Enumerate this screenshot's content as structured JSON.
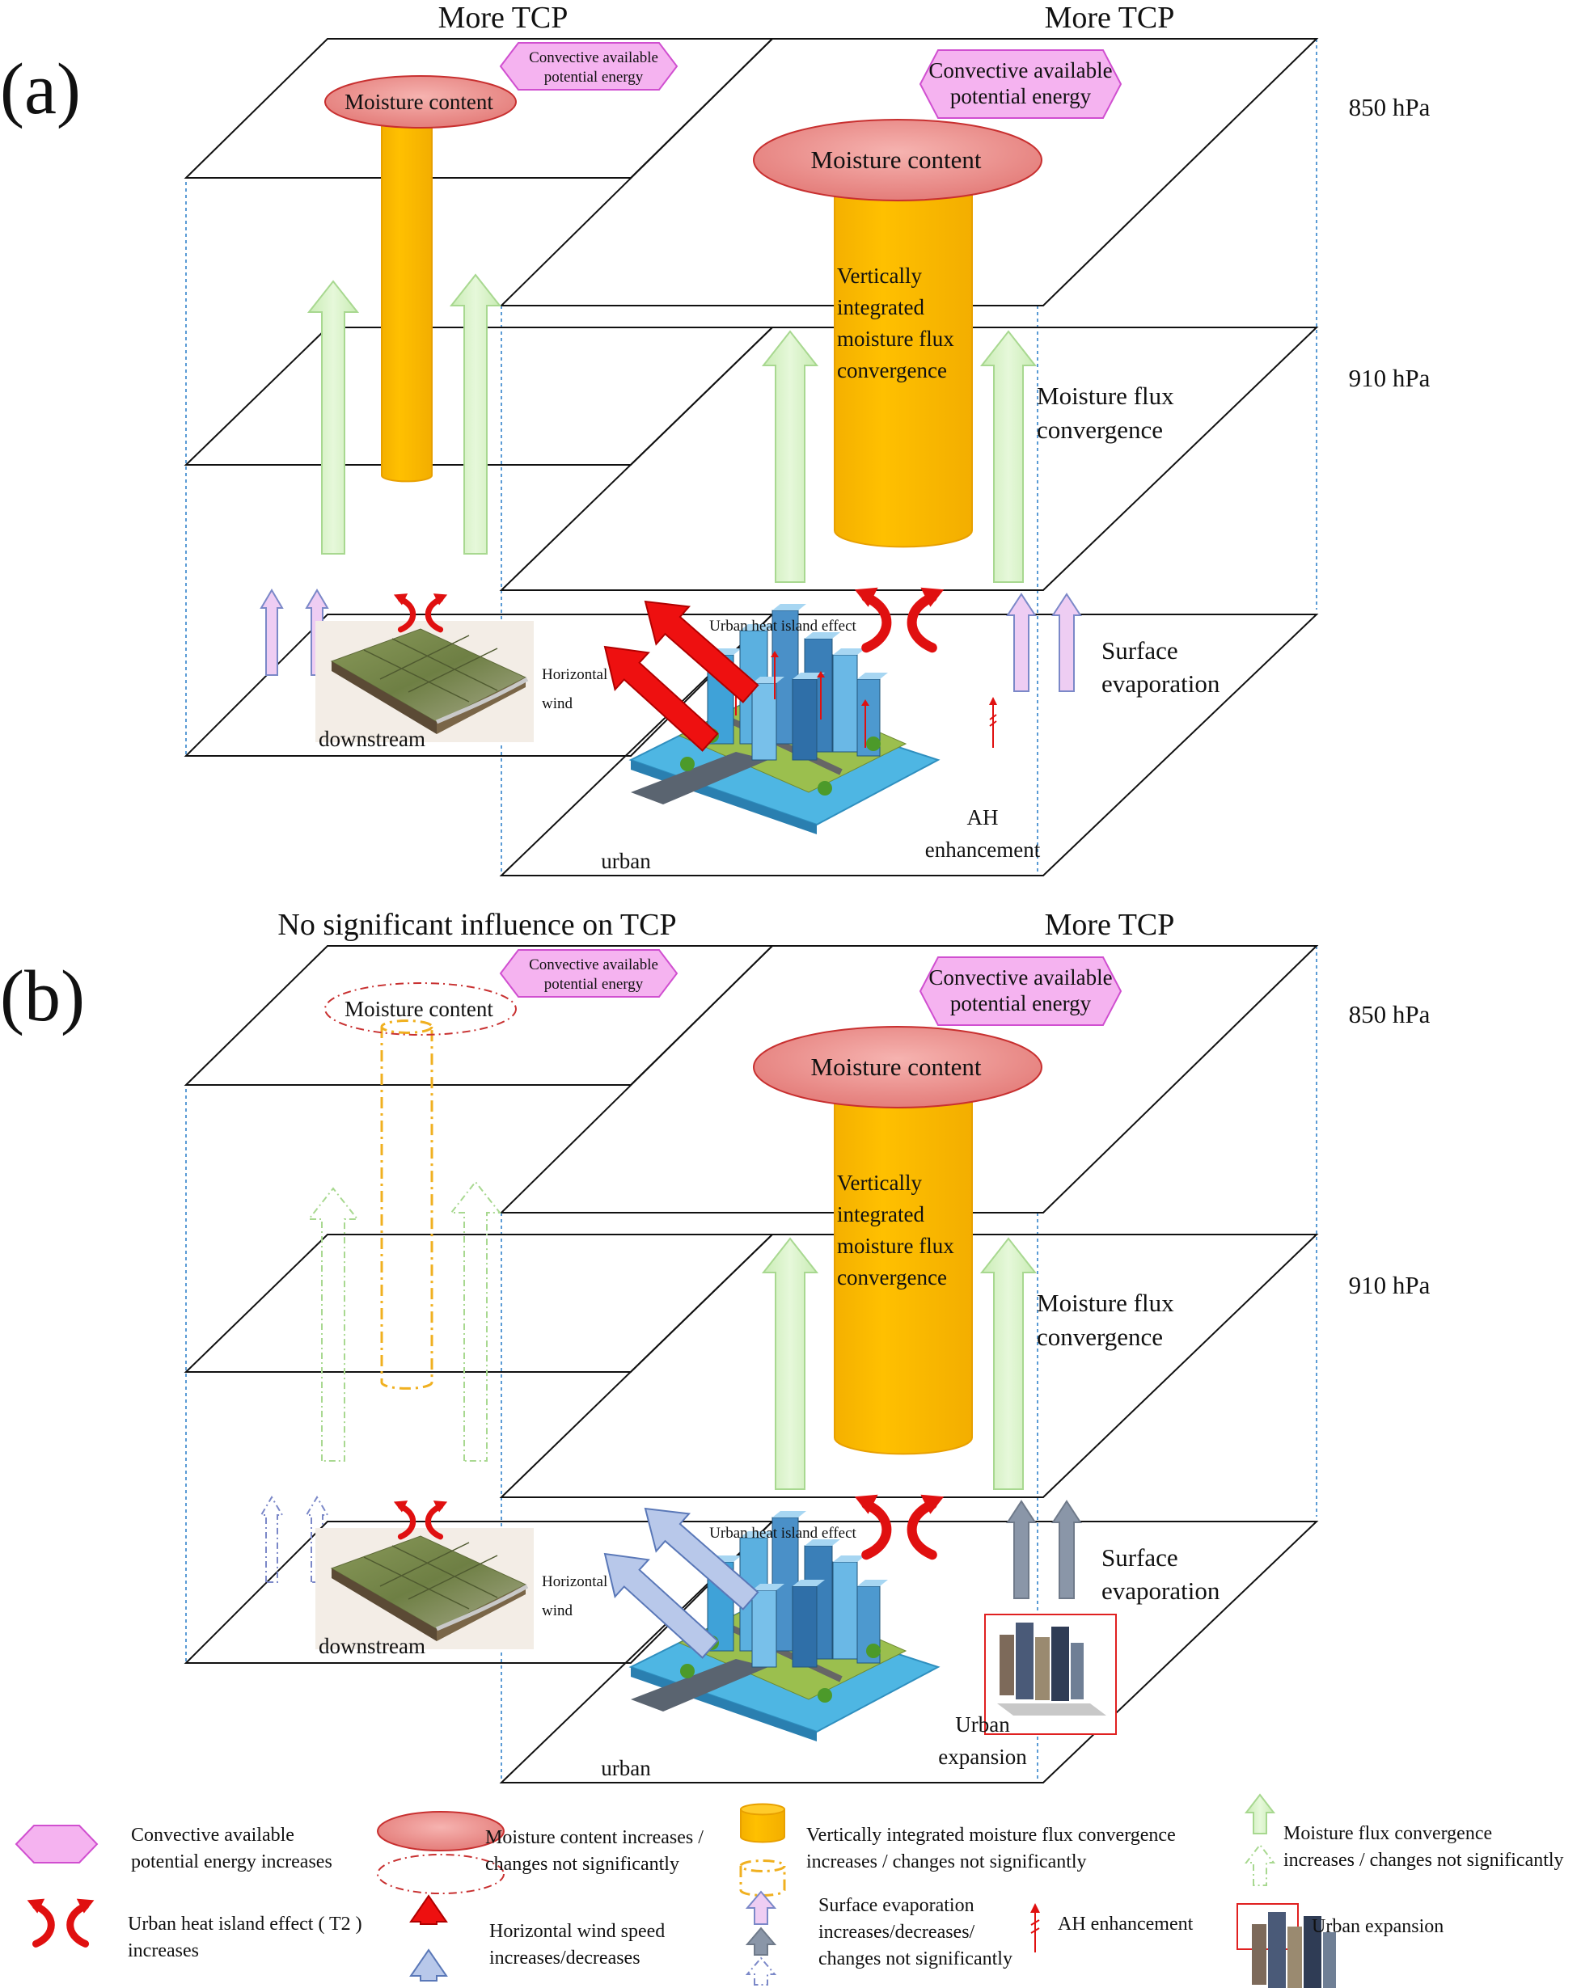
{
  "panels": [
    {
      "id": "a",
      "letter": "(a)",
      "left_title": "More TCP",
      "right_title": "More TCP",
      "pressure_top": "850 hPa",
      "pressure_mid": "910 hPa",
      "moisture_left": "Moisture content",
      "moisture_right": "Moisture content",
      "cape_left": [
        "Convective available",
        "potential energy"
      ],
      "cape_right": [
        "Convective available",
        "potential energy"
      ],
      "column_text": [
        "Vertically",
        "integrated",
        "moisture flux",
        "convergence"
      ],
      "flux_label": [
        "Moisture flux",
        "convergence"
      ],
      "uhi_label": "Urban heat island  effect",
      "wind_label": [
        "Horizontal",
        "wind"
      ],
      "evap_label": [
        "Surface",
        "evaporation"
      ],
      "downstream": "downstream",
      "urban": "urban",
      "corner_label": [
        "AH",
        "enhancement"
      ]
    },
    {
      "id": "b",
      "letter": "(b)",
      "left_title": "No significant  influence on TCP",
      "right_title": "More TCP",
      "pressure_top": "850 hPa",
      "pressure_mid": "910 hPa",
      "moisture_left": "Moisture content",
      "moisture_right": "Moisture content",
      "cape_left": [
        "Convective available",
        "potential energy"
      ],
      "cape_right": [
        "Convective available",
        "potential energy"
      ],
      "column_text": [
        "Vertically",
        "integrated",
        "moisture flux",
        "convergence"
      ],
      "flux_label": [
        "Moisture flux",
        "convergence"
      ],
      "uhi_label": "Urban heat island  effect",
      "wind_label": [
        "Horizontal",
        "wind"
      ],
      "evap_label": [
        "Surface",
        "evaporation"
      ],
      "downstream": "downstream",
      "urban": "urban",
      "corner_label": [
        "Urban",
        "expansion"
      ]
    }
  ],
  "legend": {
    "cape": [
      "Convective available",
      "potential energy increases"
    ],
    "moisture": [
      "Moisture content increases /",
      "changes not significantly"
    ],
    "column": [
      "Vertically  integrated moisture flux  convergence",
      "increases / changes not significantly"
    ],
    "flux": [
      "Moisture flux  convergence",
      "increases / changes not significantly"
    ],
    "uhi": [
      "Urban heat island  effect ( T2 )",
      "increases"
    ],
    "wind": [
      "Horizontal  wind speed",
      "increases/decreases"
    ],
    "evap": [
      "Surface evaporation",
      "increases/decreases/",
      "changes not significantly"
    ],
    "ah": "AH enhancement",
    "expansion": "Urban expansion"
  },
  "colors": {
    "cape_fill": "#f5b3f0",
    "cape_stroke": "#d04fd0",
    "moisture_fill": "#e88a88",
    "moisture_stroke": "#c83030",
    "column_fill": "#ffc000",
    "column_stroke": "#e8a000",
    "flux_fill": "#d4f2c2",
    "flux_stroke": "#a8d890",
    "evap_fill": "#eecdf3",
    "evap_stroke": "#7b88c8",
    "wind_red": "#ee1010",
    "wind_blue": "#b8c8ea",
    "evap_gray": "#8a96a8",
    "uhi_red": "#e01010",
    "guide_blue": "#5b9bd5"
  }
}
